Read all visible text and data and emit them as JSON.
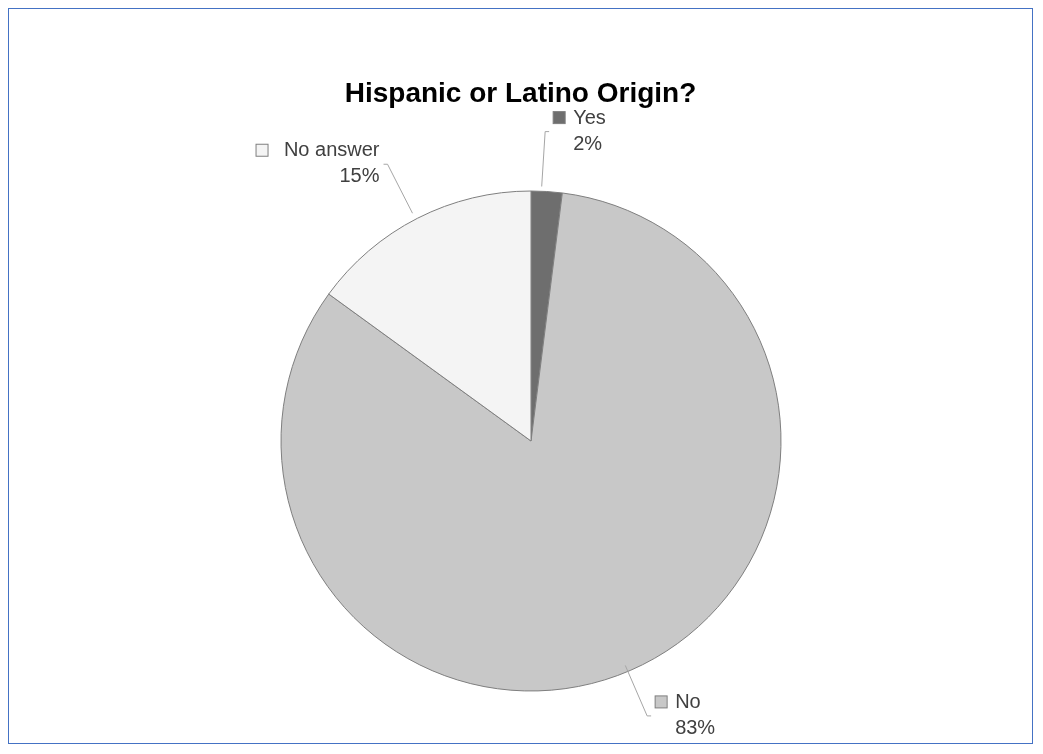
{
  "chart_data": {
    "type": "pie",
    "title": "Hispanic or Latino Origin?",
    "categories": [
      "Yes",
      "No",
      "No answer"
    ],
    "values": [
      2,
      83,
      15
    ],
    "colors": [
      "#6e6e6e",
      "#c8c8c8",
      "#f4f4f4"
    ],
    "value_labels": [
      "2%",
      "83%",
      "15%"
    ],
    "legend": "top"
  }
}
